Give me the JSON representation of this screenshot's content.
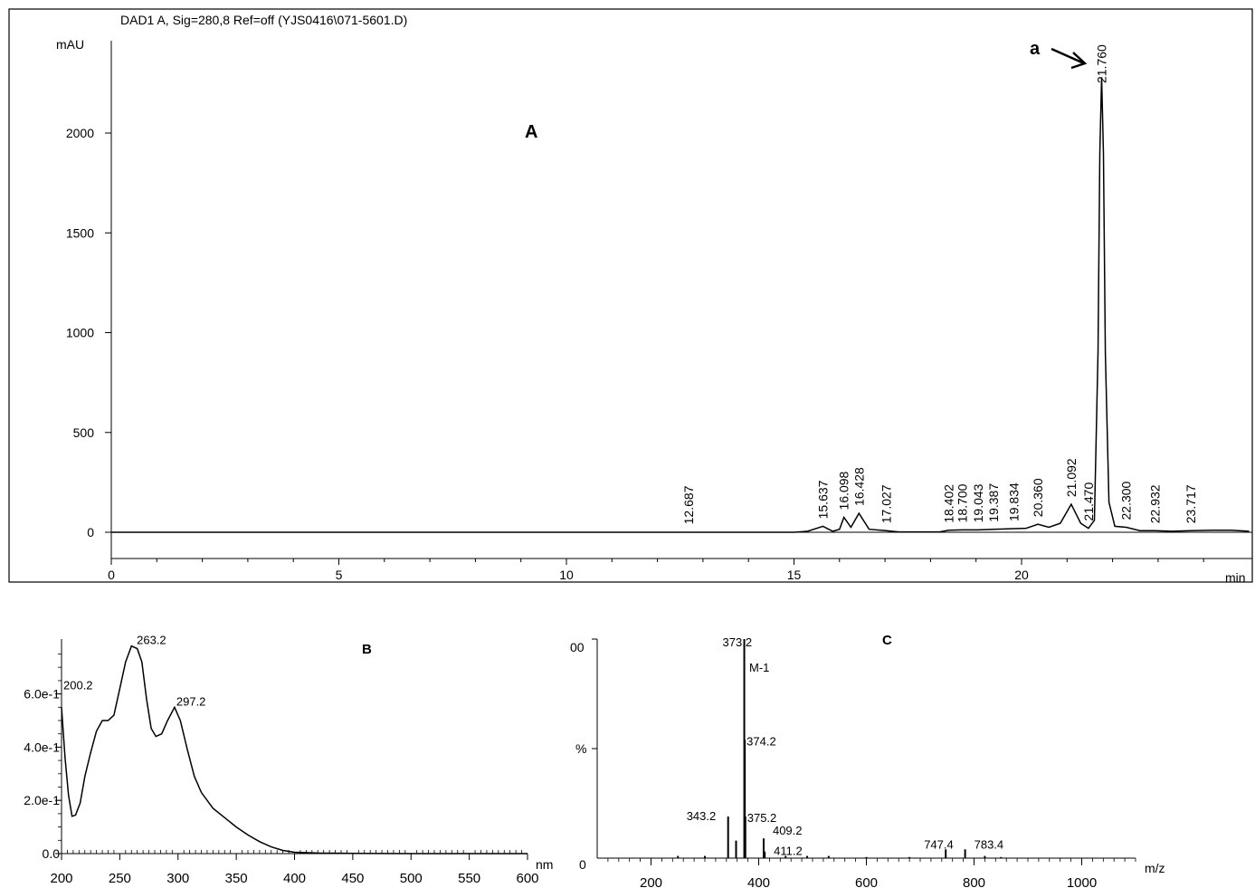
{
  "chart_data": [
    {
      "id": "A",
      "type": "line",
      "panel_label": "A",
      "title": "DAD1 A, Sig=280,8 Ref=off (YJS0416\\071-5601.D)",
      "ylabel": "mAU",
      "xlabel": "min",
      "xlim": [
        0,
        25
      ],
      "ylim": [
        -130,
        2450
      ],
      "xticks": [
        0,
        5,
        10,
        15,
        20
      ],
      "yticks": [
        0,
        500,
        1000,
        1500,
        2000
      ],
      "annotation": "a",
      "baseline": [
        [
          0,
          0
        ],
        [
          15.0,
          0
        ],
        [
          15.3,
          5
        ],
        [
          15.637,
          30
        ],
        [
          15.85,
          5
        ],
        [
          16.0,
          15
        ],
        [
          16.098,
          75
        ],
        [
          16.25,
          25
        ],
        [
          16.428,
          95
        ],
        [
          16.65,
          15
        ],
        [
          17.027,
          8
        ],
        [
          17.3,
          2
        ],
        [
          18.2,
          2
        ],
        [
          18.402,
          10
        ],
        [
          18.7,
          12
        ],
        [
          19.043,
          12
        ],
        [
          19.387,
          15
        ],
        [
          19.834,
          18
        ],
        [
          20.1,
          20
        ],
        [
          20.36,
          40
        ],
        [
          20.6,
          25
        ],
        [
          20.85,
          45
        ],
        [
          21.092,
          140
        ],
        [
          21.3,
          45
        ],
        [
          21.47,
          20
        ],
        [
          21.6,
          60
        ],
        [
          21.68,
          900
        ],
        [
          21.72,
          1900
        ],
        [
          21.76,
          2280
        ],
        [
          21.8,
          1900
        ],
        [
          21.84,
          900
        ],
        [
          21.92,
          150
        ],
        [
          22.05,
          30
        ],
        [
          22.3,
          25
        ],
        [
          22.6,
          8
        ],
        [
          22.932,
          8
        ],
        [
          23.3,
          5
        ],
        [
          23.717,
          8
        ],
        [
          24.2,
          10
        ],
        [
          24.6,
          10
        ],
        [
          25,
          5
        ]
      ],
      "peaks": [
        {
          "rt": "12.687",
          "x": 12.687,
          "y": 3
        },
        {
          "rt": "15.637",
          "x": 15.637,
          "y": 30
        },
        {
          "rt": "16.098",
          "x": 16.098,
          "y": 75
        },
        {
          "rt": "16.428",
          "x": 16.428,
          "y": 95
        },
        {
          "rt": "17.027",
          "x": 17.027,
          "y": 8
        },
        {
          "rt": "18.402",
          "x": 18.402,
          "y": 10
        },
        {
          "rt": "18.700",
          "x": 18.7,
          "y": 12
        },
        {
          "rt": "19.043",
          "x": 19.043,
          "y": 12
        },
        {
          "rt": "19.387",
          "x": 19.387,
          "y": 15
        },
        {
          "rt": "19.834",
          "x": 19.834,
          "y": 18
        },
        {
          "rt": "20.360",
          "x": 20.36,
          "y": 40
        },
        {
          "rt": "21.092",
          "x": 21.092,
          "y": 140
        },
        {
          "rt": "21.470",
          "x": 21.47,
          "y": 20
        },
        {
          "rt": "21.760",
          "x": 21.76,
          "y": 2280
        },
        {
          "rt": "22.300",
          "x": 22.3,
          "y": 25
        },
        {
          "rt": "22.932",
          "x": 22.932,
          "y": 8
        },
        {
          "rt": "23.717",
          "x": 23.717,
          "y": 8
        }
      ]
    },
    {
      "id": "B",
      "type": "line",
      "panel_label": "B",
      "xlabel": "nm",
      "xlim": [
        200,
        600
      ],
      "ylim": [
        0,
        0.8
      ],
      "xticks": [
        200,
        250,
        300,
        350,
        400,
        450,
        500,
        550,
        600
      ],
      "yticks": [
        {
          "v": 0.0,
          "label": "0.0"
        },
        {
          "v": 0.2,
          "label": "2.0e-1"
        },
        {
          "v": 0.4,
          "label": "4.0e-1"
        },
        {
          "v": 0.6,
          "label": "6.0e-1"
        }
      ],
      "spectrum": [
        [
          200,
          0.55
        ],
        [
          203,
          0.36
        ],
        [
          206,
          0.22
        ],
        [
          209,
          0.14
        ],
        [
          212,
          0.145
        ],
        [
          216,
          0.19
        ],
        [
          220,
          0.29
        ],
        [
          225,
          0.38
        ],
        [
          230,
          0.46
        ],
        [
          235,
          0.5
        ],
        [
          240,
          0.5
        ],
        [
          245,
          0.52
        ],
        [
          250,
          0.62
        ],
        [
          255,
          0.72
        ],
        [
          260,
          0.78
        ],
        [
          265,
          0.77
        ],
        [
          269,
          0.72
        ],
        [
          273,
          0.58
        ],
        [
          277,
          0.47
        ],
        [
          281,
          0.44
        ],
        [
          286,
          0.45
        ],
        [
          291,
          0.5
        ],
        [
          297,
          0.55
        ],
        [
          302,
          0.5
        ],
        [
          308,
          0.39
        ],
        [
          314,
          0.29
        ],
        [
          320,
          0.23
        ],
        [
          330,
          0.17
        ],
        [
          340,
          0.135
        ],
        [
          350,
          0.1
        ],
        [
          360,
          0.07
        ],
        [
          370,
          0.045
        ],
        [
          380,
          0.025
        ],
        [
          390,
          0.012
        ],
        [
          400,
          0.005
        ],
        [
          420,
          0.002
        ],
        [
          450,
          0.001
        ],
        [
          500,
          0.0
        ],
        [
          600,
          0.0
        ]
      ],
      "labels": [
        {
          "text": "200.2",
          "x": 200,
          "y": 0.61
        },
        {
          "text": "263.2",
          "x": 263,
          "y": 0.78
        },
        {
          "text": "297.2",
          "x": 297,
          "y": 0.55
        }
      ]
    },
    {
      "id": "C",
      "type": "bar",
      "panel_label": "C",
      "xlabel": "m/z",
      "ylabel": "%",
      "xlim": [
        100,
        1100
      ],
      "ylim": [
        0,
        100
      ],
      "xticks": [
        200,
        400,
        600,
        800,
        1000
      ],
      "ytick_top_label": "00",
      "ytick_bottom_label": "0",
      "annotation": "M-1",
      "peaks": [
        {
          "mz": 250,
          "intensity": 1
        },
        {
          "mz": 300,
          "intensity": 1
        },
        {
          "mz": 343.2,
          "intensity": 19
        },
        {
          "mz": 358,
          "intensity": 8
        },
        {
          "mz": 373.2,
          "intensity": 100
        },
        {
          "mz": 374.2,
          "intensity": 54
        },
        {
          "mz": 375.2,
          "intensity": 19
        },
        {
          "mz": 409.2,
          "intensity": 9
        },
        {
          "mz": 411.2,
          "intensity": 3
        },
        {
          "mz": 450,
          "intensity": 1
        },
        {
          "mz": 490,
          "intensity": 1
        },
        {
          "mz": 530,
          "intensity": 1
        },
        {
          "mz": 600,
          "intensity": 0.5
        },
        {
          "mz": 680,
          "intensity": 0.5
        },
        {
          "mz": 747.4,
          "intensity": 4
        },
        {
          "mz": 783.4,
          "intensity": 4
        },
        {
          "mz": 820,
          "intensity": 1
        },
        {
          "mz": 850,
          "intensity": 0.5
        }
      ],
      "labels": [
        {
          "text": "373.2",
          "mz": 373.2,
          "intensity": 100
        },
        {
          "text": "374.2",
          "mz": 374.2,
          "intensity": 54
        },
        {
          "text": "343.2",
          "mz": 343.2,
          "intensity": 19
        },
        {
          "text": "375.2",
          "mz": 375.2,
          "intensity": 19
        },
        {
          "text": "409.2",
          "mz": 409.2,
          "intensity": 9
        },
        {
          "text": "411.2",
          "mz": 411.2,
          "intensity": 3
        },
        {
          "text": "747.4",
          "mz": 747.4,
          "intensity": 4
        },
        {
          "text": "783.4",
          "mz": 783.4,
          "intensity": 4
        }
      ]
    }
  ]
}
